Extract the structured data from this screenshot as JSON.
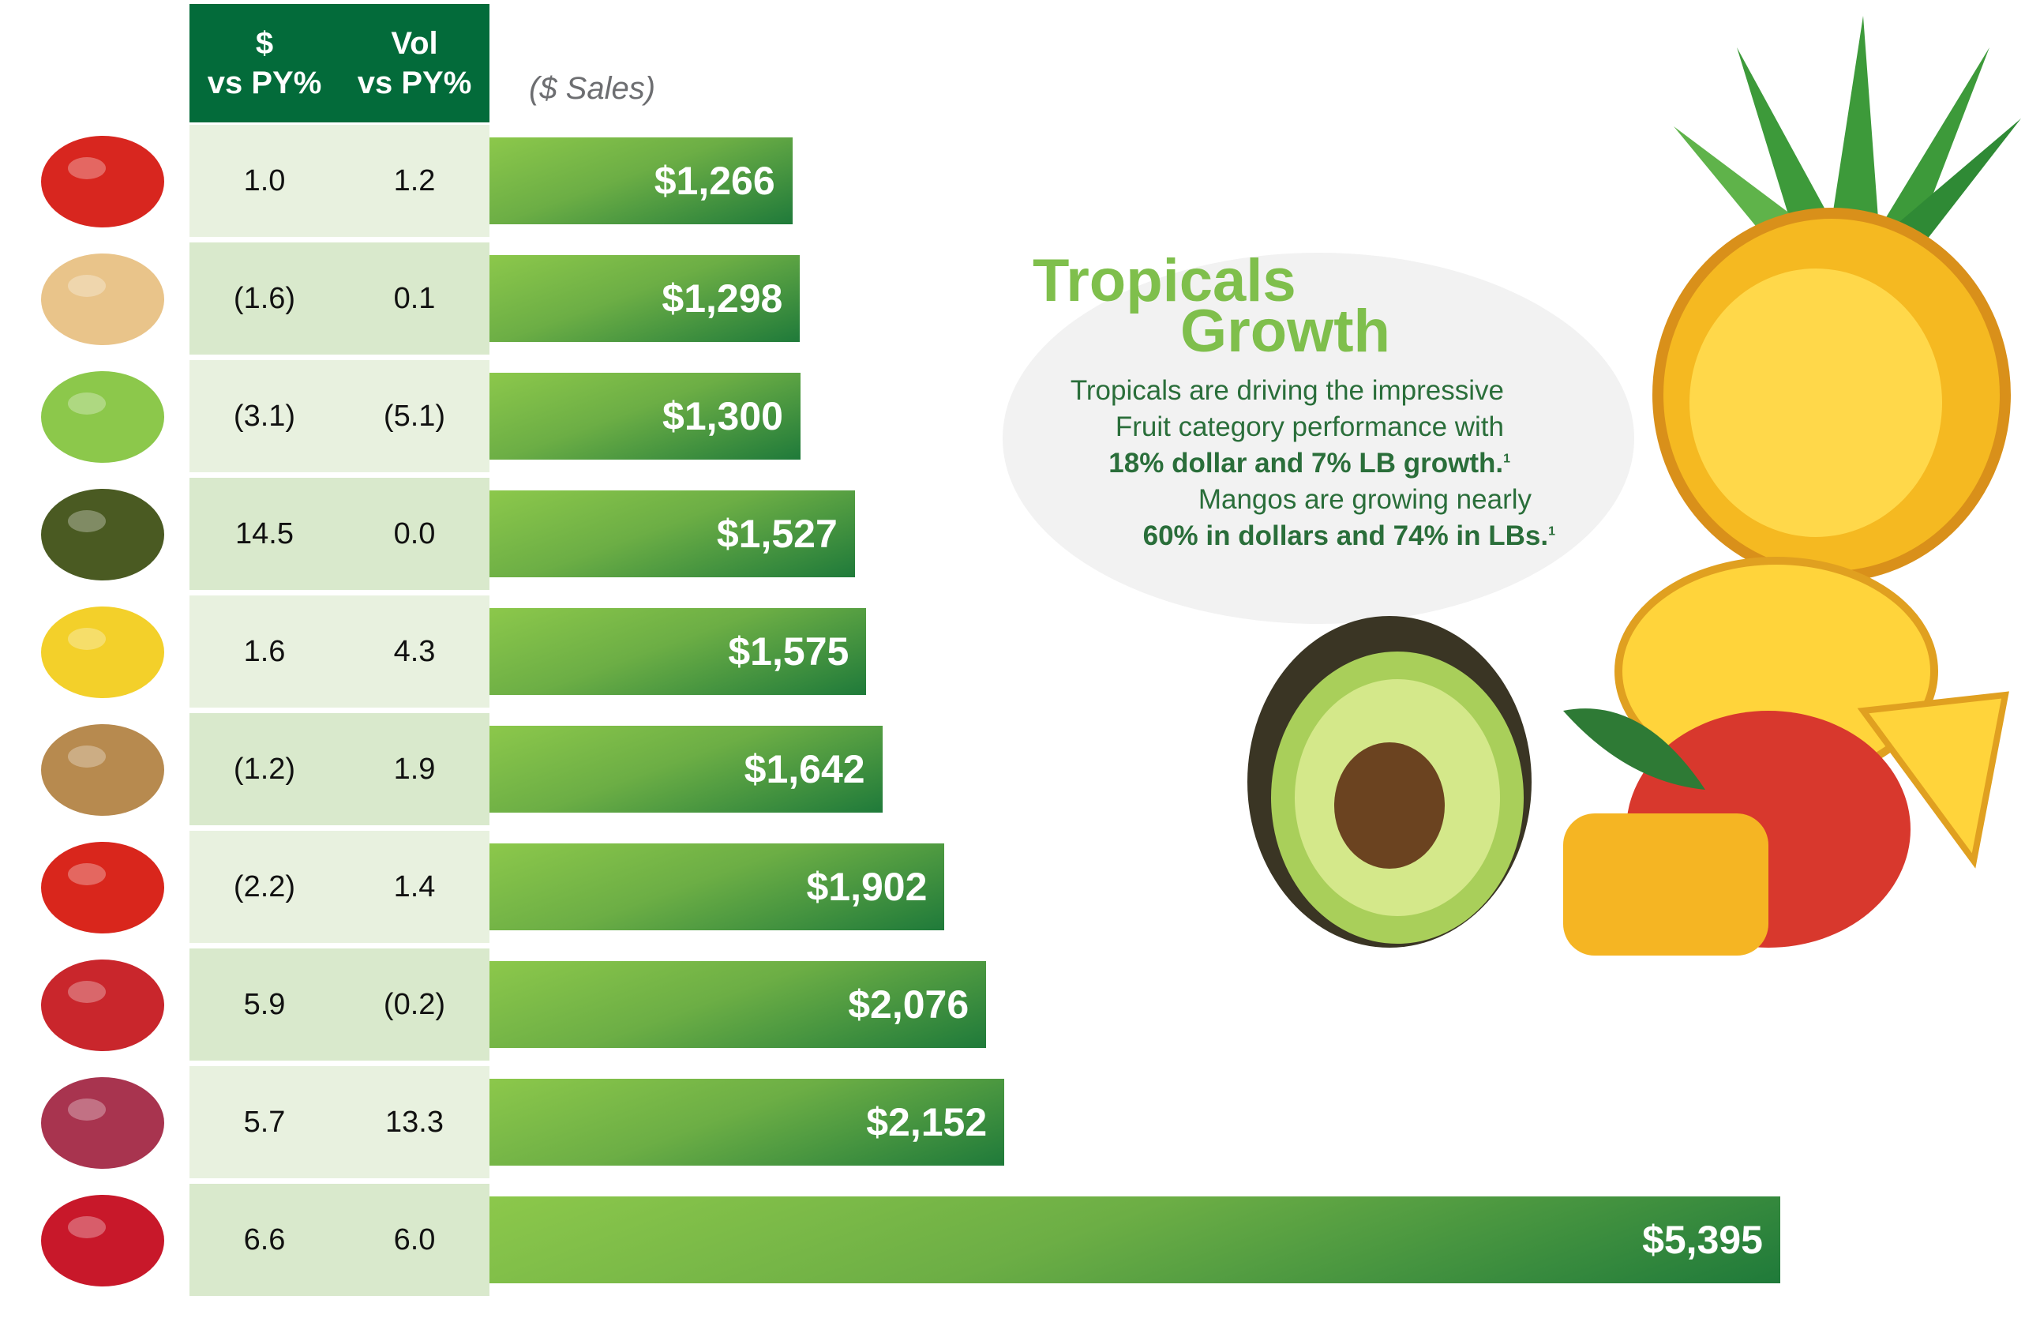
{
  "chart_data": {
    "type": "bar",
    "orientation": "horizontal",
    "unit_label": "($ Sales)",
    "table_headers": [
      {
        "line1": "$",
        "line2": "vs PY%"
      },
      {
        "line1": "Vol",
        "line2": "vs PY%"
      }
    ],
    "item_icons": [
      "peppers-icon",
      "onion-icon",
      "lettuce-icon",
      "avocado-icon",
      "banana-icon",
      "potato-icon",
      "tomato-icon",
      "apple-icon",
      "grapes-icon",
      "berries-icon"
    ],
    "dollar_vs_py": [
      "1.0",
      "(1.6)",
      "(3.1)",
      "14.5",
      "1.6",
      "(1.2)",
      "(2.2)",
      "5.9",
      "5.7",
      "6.6"
    ],
    "vol_vs_py": [
      "1.2",
      "0.1",
      "(5.1)",
      "0.0",
      "4.3",
      "1.9",
      "1.4",
      "(0.2)",
      "13.3",
      "6.0"
    ],
    "values": [
      1266,
      1298,
      1300,
      1527,
      1575,
      1642,
      1902,
      2076,
      2152,
      5395
    ],
    "value_labels": [
      "$1,266",
      "$1,298",
      "$1,300",
      "$1,527",
      "$1,575",
      "$1,642",
      "$1,902",
      "$2,076",
      "$2,152",
      "$5,395"
    ],
    "xlim": [
      0,
      5395
    ],
    "grid": false,
    "colors": {
      "header": "#036b3a",
      "bar_light": "#8cc84b",
      "bar_dark": "#1f7a3a",
      "row_a": "#e8f1df",
      "row_b": "#d9e9cc"
    }
  },
  "callout": {
    "title_line1": "Tropicals",
    "title_line2": "Growth",
    "line1": "Tropicals are driving the impressive",
    "line2": "Fruit category performance with",
    "line3": "18% dollar and 7% LB growth.",
    "line4": "Mangos are growing nearly",
    "line5": "60% in dollars and 74% in LBs.",
    "footnote": "1",
    "colors": {
      "title": "#7fbf4c",
      "body": "#2a6e3a"
    }
  }
}
